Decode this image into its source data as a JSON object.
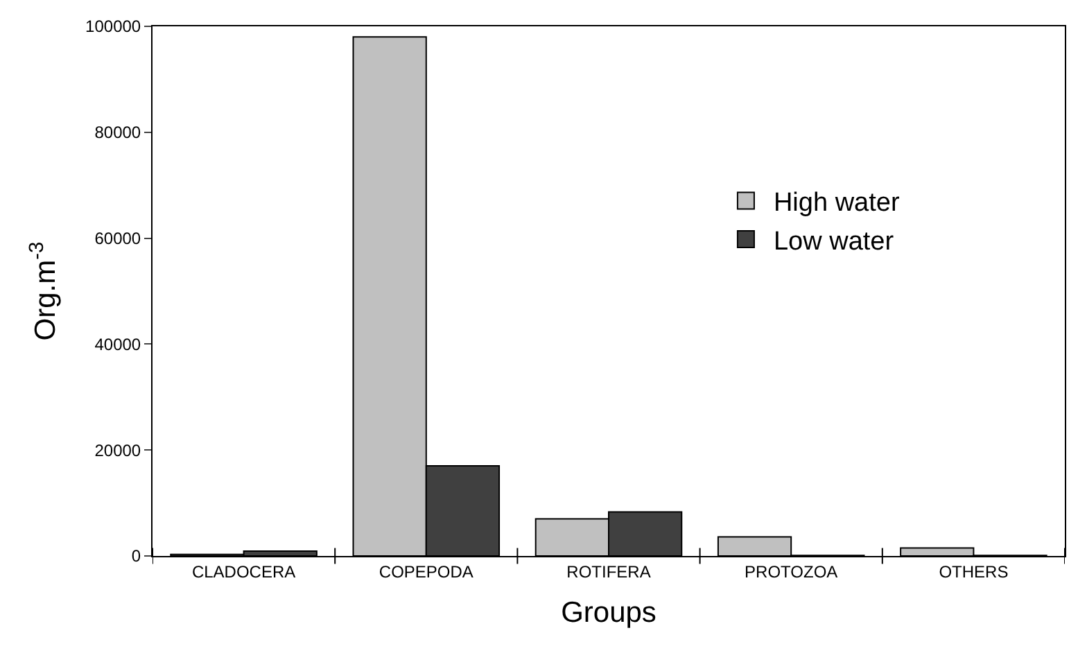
{
  "chart_data": {
    "type": "bar",
    "xlabel": "Groups",
    "ylabel": "Org.m$^{-3}$",
    "categories": [
      "CLADOCERA",
      "COPEPODA",
      "ROTIFERA",
      "PROTOZOA",
      "OTHERS"
    ],
    "series": [
      {
        "name": "High water",
        "color": "#c0c0c0",
        "values": [
          300,
          98000,
          7000,
          3600,
          1500
        ]
      },
      {
        "name": "Low water",
        "color": "#404040",
        "values": [
          900,
          17000,
          8300,
          100,
          100
        ]
      }
    ],
    "ylim": [
      0,
      100000
    ],
    "yticks": [
      0,
      20000,
      40000,
      60000,
      80000,
      100000
    ],
    "legend": "top right"
  }
}
